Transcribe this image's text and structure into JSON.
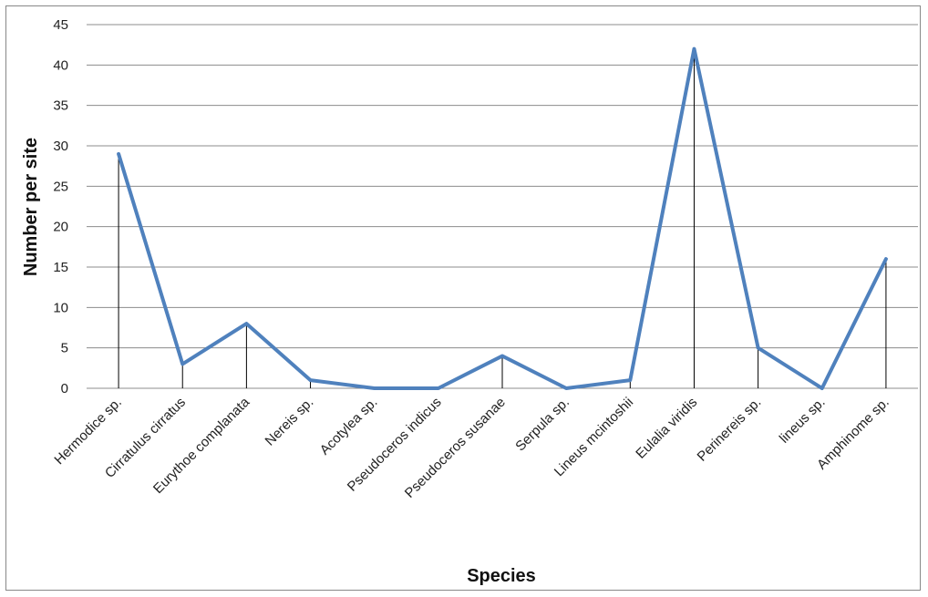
{
  "chart_data": {
    "type": "line",
    "title": "",
    "xlabel": "Species",
    "ylabel": "Number per site",
    "ylim": [
      0,
      45
    ],
    "y_ticks": [
      0,
      5,
      10,
      15,
      20,
      25,
      30,
      35,
      40,
      45
    ],
    "grid": true,
    "legend": "none",
    "drop_lines": true,
    "line_color": "#4f81bd",
    "categories": [
      "Hermodice sp.",
      "Cirratulus cirratus",
      "Eurythoe complanata",
      "Nereis sp.",
      "Acotylea sp.",
      "Pseudoceros indicus",
      "Pseudoceros susanae",
      "Serpula sp.",
      "Lineus mcintoshii",
      "Eulalia viridis",
      "Perinereis sp.",
      "lineus sp.",
      "Amphinome sp."
    ],
    "values": [
      29,
      3,
      8,
      1,
      0,
      0,
      4,
      0,
      1,
      42,
      5,
      0,
      16
    ]
  }
}
